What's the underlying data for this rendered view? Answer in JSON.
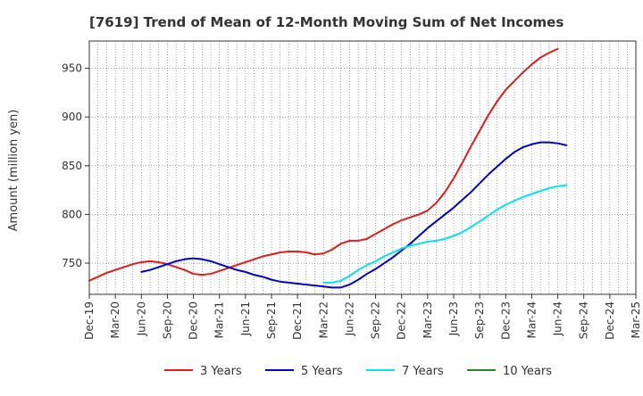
{
  "chart_data": {
    "type": "line",
    "title": "[7619]  Trend of Mean of 12-Month Moving Sum of Net Incomes",
    "xlabel": "",
    "ylabel": "Amount (million yen)",
    "ylim": [
      718,
      978
    ],
    "yticks": [
      750,
      800,
      850,
      900,
      950
    ],
    "x_tick_labels": [
      "Dec-19",
      "Mar-20",
      "Jun-20",
      "Sep-20",
      "Dec-20",
      "Mar-21",
      "Jun-21",
      "Sep-21",
      "Dec-21",
      "Mar-22",
      "Jun-22",
      "Sep-22",
      "Dec-22",
      "Mar-23",
      "Jun-23",
      "Sep-23",
      "Dec-23",
      "Mar-24",
      "Jun-24",
      "Sep-24",
      "Dec-24",
      "Mar-25"
    ],
    "grid": true,
    "legend_position": "bottom",
    "series": [
      {
        "name": "3 Years",
        "color": "#e41a1c",
        "start_index": 0,
        "values": [
          732,
          736,
          740,
          743,
          746,
          749,
          751,
          752,
          751,
          749,
          746,
          743,
          739,
          738,
          739,
          742,
          745,
          748,
          751,
          754,
          757,
          759,
          761,
          762,
          762,
          761,
          759,
          760,
          764,
          770,
          773,
          773,
          775,
          780,
          785,
          790,
          794,
          797,
          800,
          804,
          812,
          823,
          837,
          853,
          870,
          886,
          902,
          916,
          928,
          937,
          946,
          954,
          961,
          966,
          970
        ]
      },
      {
        "name": "5 Years",
        "color": "#0000cc",
        "start_index": 6,
        "values": [
          741,
          743,
          746,
          749,
          752,
          754,
          755,
          754,
          752,
          749,
          746,
          743,
          741,
          738,
          736,
          733,
          731,
          730,
          729,
          728,
          727,
          726,
          725,
          725,
          728,
          733,
          739,
          744,
          750,
          756,
          763,
          770,
          778,
          786,
          793,
          800,
          807,
          815,
          823,
          832,
          841,
          849,
          857,
          864,
          869,
          872,
          874,
          874,
          873,
          871
        ]
      },
      {
        "name": "7 Years",
        "color": "#00e5ee",
        "start_index": 27,
        "values": [
          730,
          730,
          732,
          737,
          743,
          748,
          752,
          757,
          761,
          765,
          768,
          770,
          772,
          773,
          775,
          778,
          782,
          787,
          793,
          799,
          805,
          810,
          814,
          818,
          821,
          824,
          827,
          829,
          830
        ]
      },
      {
        "name": "10 Years",
        "color": "#228b22",
        "start_index": 0,
        "values": []
      }
    ]
  }
}
